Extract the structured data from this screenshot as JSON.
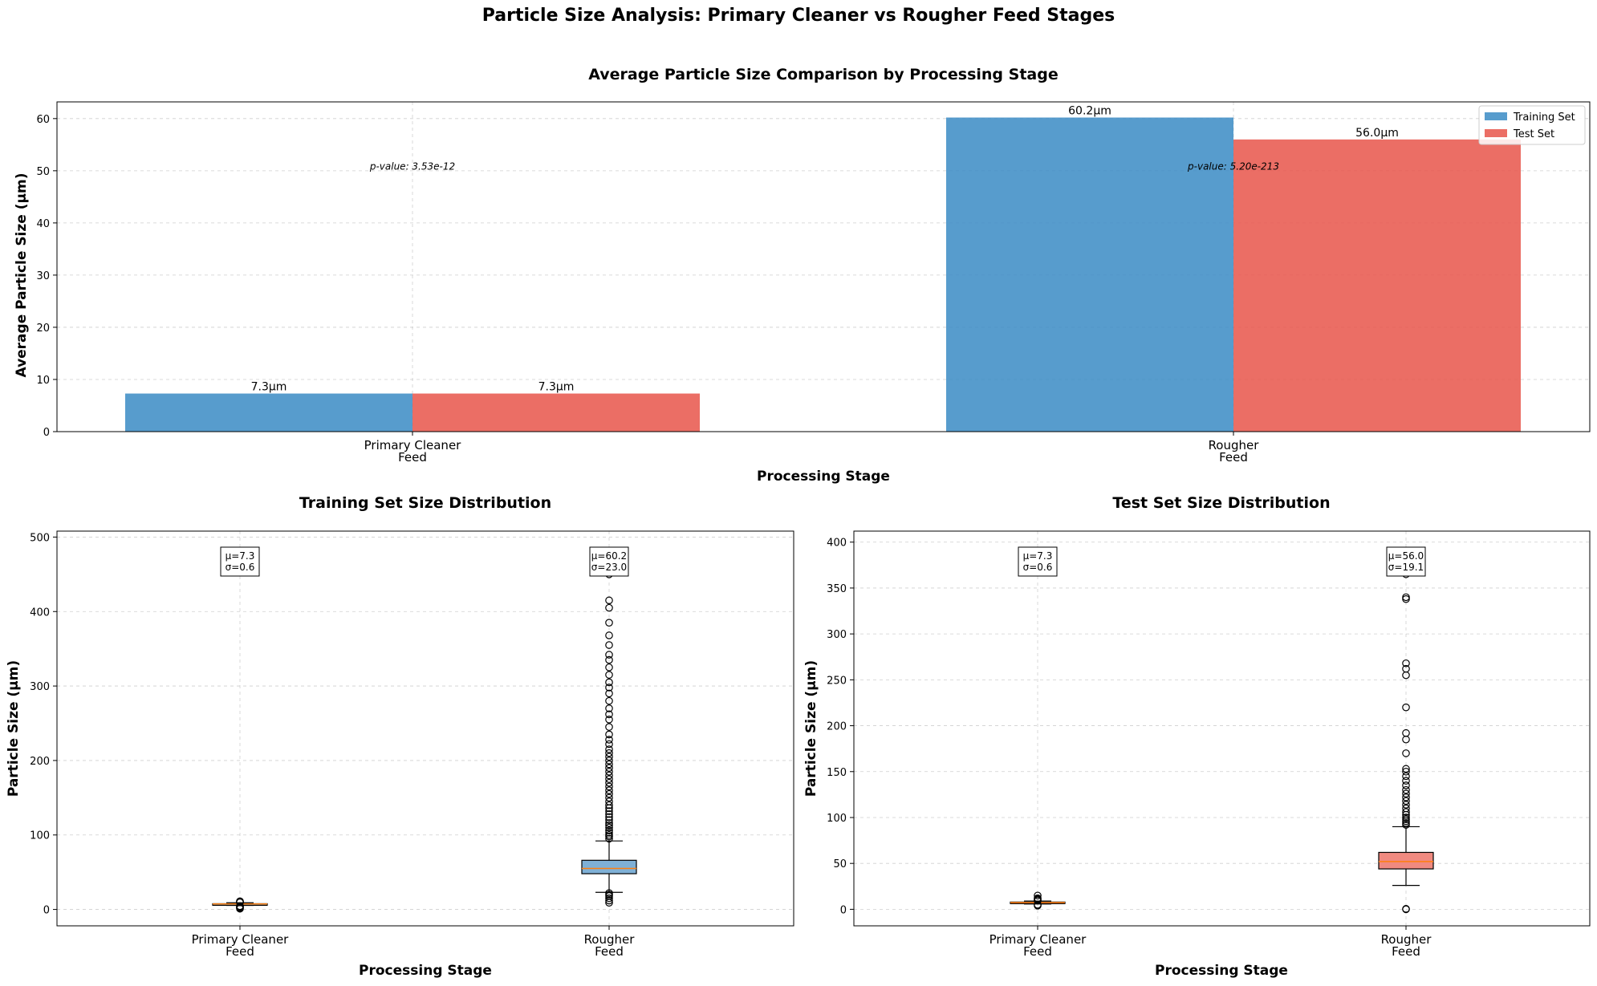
{
  "figure": {
    "suptitle": "Particle Size Analysis: Primary Cleaner vs Rougher Feed Stages"
  },
  "colors": {
    "train": "#3a8bc4",
    "test": "#e8554a",
    "train_box": "#7fb0d6",
    "test_box": "#f08a80",
    "median": "#ff7f0e"
  },
  "chart_data": [
    {
      "type": "bar",
      "title": "Average Particle Size Comparison by Processing Stage",
      "xlabel": "Processing Stage",
      "ylabel": "Average Particle Size (μm)",
      "categories": [
        "Primary Cleaner\nFeed",
        "Rougher\nFeed"
      ],
      "series": [
        {
          "name": "Training Set",
          "values": [
            7.3,
            60.2
          ],
          "labels": [
            "7.3μm",
            "60.2μm"
          ]
        },
        {
          "name": "Test Set",
          "values": [
            7.3,
            56.0
          ],
          "labels": [
            "7.3μm",
            "56.0μm"
          ]
        }
      ],
      "annotations": [
        "p-value: 3.53e-12",
        "p-value: 5.20e-213"
      ],
      "ylim": [
        0,
        63.2
      ],
      "yticks": [
        0,
        10,
        20,
        30,
        40,
        50,
        60
      ],
      "grid": true,
      "legend": "top-right"
    },
    {
      "type": "box",
      "title": "Training Set Size Distribution",
      "xlabel": "Processing Stage",
      "ylabel": "Particle Size (μm)",
      "categories": [
        "Primary Cleaner\nFeed",
        "Rougher\nFeed"
      ],
      "ylim": [
        -22,
        508
      ],
      "yticks": [
        0,
        100,
        200,
        300,
        400,
        500
      ],
      "grid": true,
      "boxes": [
        {
          "whisker_low": 5.5,
          "q1": 6.9,
          "median": 7.3,
          "q3": 7.7,
          "whisker_high": 9.0,
          "outliers": [
            1,
            2,
            3,
            4,
            4.5,
            9.5,
            10,
            10.5,
            11
          ],
          "stats_label": "μ=7.3\nσ=0.6"
        },
        {
          "whisker_low": 23,
          "q1": 48,
          "median": 55,
          "q3": 66,
          "whisker_high": 92,
          "outliers": [
            9,
            12,
            15,
            18,
            20,
            22,
            95,
            98,
            100,
            103,
            106,
            110,
            113,
            116,
            120,
            124,
            128,
            132,
            136,
            140,
            145,
            150,
            155,
            160,
            165,
            170,
            175,
            180,
            185,
            190,
            195,
            200,
            205,
            210,
            215,
            222,
            228,
            235,
            245,
            255,
            262,
            270,
            280,
            290,
            298,
            305,
            315,
            325,
            335,
            342,
            355,
            368,
            385,
            405,
            415,
            450
          ],
          "stats_label": "μ=60.2\nσ=23.0"
        }
      ]
    },
    {
      "type": "box",
      "title": "Test Set Size Distribution",
      "xlabel": "Processing Stage",
      "ylabel": "Particle Size (μm)",
      "categories": [
        "Primary Cleaner\nFeed",
        "Rougher\nFeed"
      ],
      "ylim": [
        -18,
        412
      ],
      "yticks": [
        0,
        50,
        100,
        150,
        200,
        250,
        300,
        350,
        400
      ],
      "grid": true,
      "boxes": [
        {
          "whisker_low": 5.8,
          "q1": 7.0,
          "median": 7.4,
          "q3": 7.9,
          "whisker_high": 9.0,
          "outliers": [
            4,
            5,
            9.5,
            10,
            11,
            12,
            15
          ],
          "stats_label": "μ=7.3\nσ=0.6"
        },
        {
          "whisker_low": 26,
          "q1": 44,
          "median": 52,
          "q3": 62,
          "whisker_high": 90,
          "outliers": [
            0,
            0.5,
            92,
            94,
            96,
            98,
            100,
            103,
            106,
            110,
            114,
            118,
            122,
            126,
            130,
            135,
            140,
            145,
            150,
            153,
            170,
            185,
            192,
            220,
            255,
            262,
            268,
            338,
            340,
            365
          ],
          "stats_label": "μ=56.0\nσ=19.1"
        }
      ]
    }
  ]
}
